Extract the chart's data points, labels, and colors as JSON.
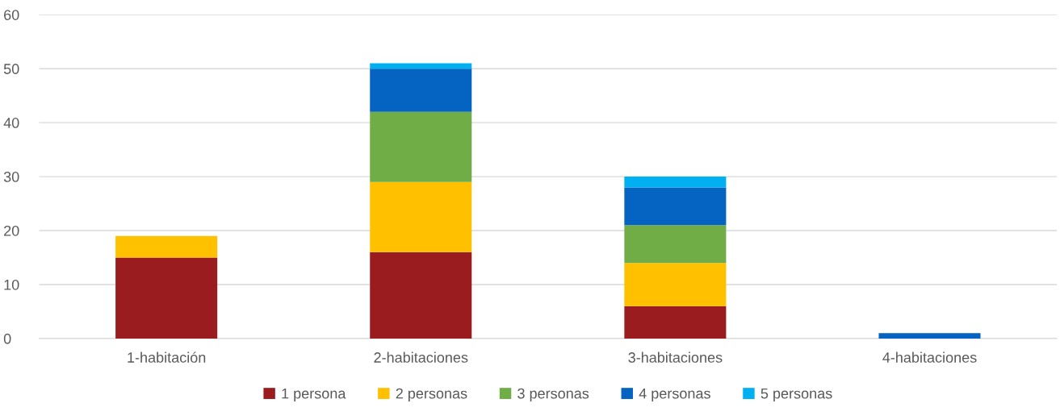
{
  "chart_data": {
    "type": "bar",
    "stacked": true,
    "categories": [
      "1-habitación",
      "2-habitaciones",
      "3-habitaciones",
      "4-habitaciones"
    ],
    "series": [
      {
        "name": "1 persona",
        "color": "#9b1c1f",
        "values": [
          15,
          16,
          6,
          0
        ]
      },
      {
        "name": "2 personas",
        "color": "#ffc000",
        "values": [
          4,
          13,
          8,
          0
        ]
      },
      {
        "name": "3 personas",
        "color": "#70ad47",
        "values": [
          0,
          13,
          7,
          0
        ]
      },
      {
        "name": "4 personas",
        "color": "#0563c1",
        "values": [
          0,
          8,
          7,
          1
        ]
      },
      {
        "name": "5 personas",
        "color": "#00b0f0",
        "values": [
          0,
          1,
          2,
          0
        ]
      }
    ],
    "ylim": [
      0,
      60
    ],
    "yticks": [
      0,
      10,
      20,
      30,
      40,
      50,
      60
    ],
    "grid": "y",
    "legend": "bottom"
  }
}
